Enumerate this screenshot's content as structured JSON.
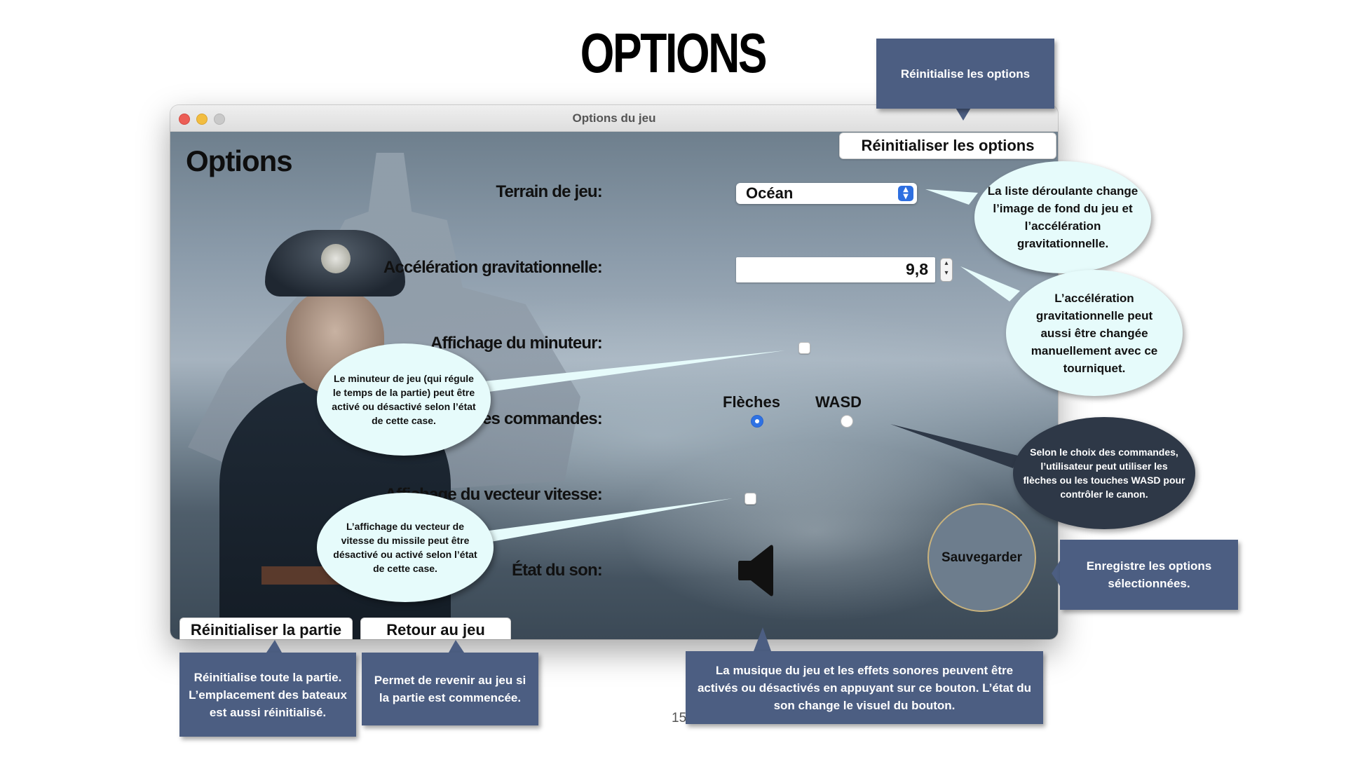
{
  "slide": {
    "title": "OPTIONS",
    "page_number": "15"
  },
  "window": {
    "title": "Options du jeu",
    "heading": "Options",
    "reset_options_button": "Réinitialiser les options",
    "fields": {
      "terrain_label": "Terrain de jeu:",
      "terrain_value": "Océan",
      "gravity_label": "Accélération gravitationnelle:",
      "gravity_value": "9,8",
      "timer_label": "Affichage du minuteur:",
      "timer_checked": false,
      "controls_label": "Choix des commandes:",
      "controls_options": [
        "Flèches",
        "WASD"
      ],
      "controls_selected": "Flèches",
      "velocity_label": "Affichage du vecteur vitesse:",
      "velocity_checked": false,
      "sound_label": "État du son:",
      "sound_icon": "speaker-icon"
    },
    "save_button": "Sauvegarder",
    "reset_game_button": "Réinitialiser la partie",
    "back_button": "Retour au jeu"
  },
  "annotations": {
    "reset_options": "Réinitialise les options",
    "dropdown": "La liste déroulante change l’image de fond du jeu et l’accélération gravitationnelle.",
    "stepper": "L’accélération gravitationnelle peut aussi être changée manuellement avec ce tourniquet.",
    "timer": "Le minuteur de jeu (qui régule le temps de la partie) peut être activé ou désactivé selon l’état de cette case.",
    "controls": "Selon le choix des commandes, l’utilisateur peut utiliser les flèches ou les touches WASD pour contrôler le canon.",
    "velocity": "L’affichage du vecteur de vitesse du missile peut être désactivé ou activé selon l’état de cette case.",
    "save": "Enregistre les options sélectionnées.",
    "reset_game": "Réinitialise toute la partie. L’emplacement des bateaux est aussi réinitialisé.",
    "back": "Permet de revenir au jeu si la partie est commencée.",
    "sound": "La musique du jeu et les effets sonores peuvent être activés ou désactivés en appuyant sur ce bouton. L’état du son change le visuel du bouton."
  },
  "colors": {
    "callout_bg": "#4c5e82",
    "bubble_bg": "#e6fbfb",
    "dark_bubble_bg": "#2e3847",
    "radio_accent": "#2f72e4"
  }
}
